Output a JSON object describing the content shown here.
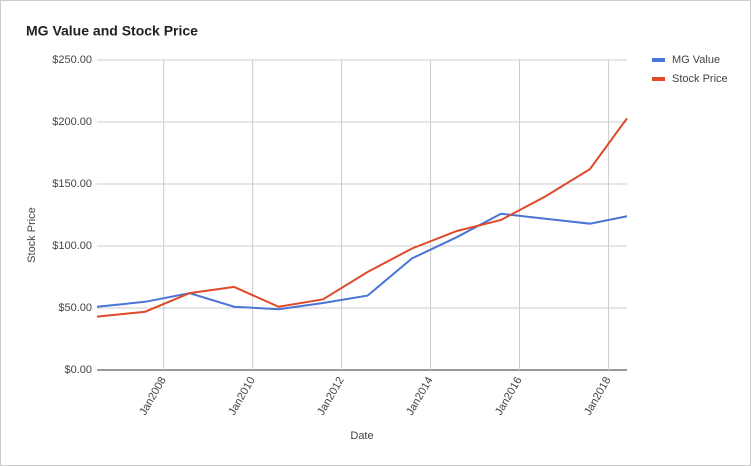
{
  "chart_data": {
    "type": "line",
    "title": "MG Value and Stock Price",
    "x_label": "Date",
    "y_label": "Stock Price",
    "x": [
      "2006-07",
      "2007-08",
      "2008-08",
      "2009-08",
      "2010-08",
      "2011-08",
      "2012-08",
      "2013-08",
      "2014-08",
      "2015-08",
      "2016-08",
      "2017-08",
      "2018-06"
    ],
    "series": [
      {
        "name": "MG Value",
        "color": "#4a74d6",
        "values": [
          51,
          55,
          62,
          51,
          49,
          54,
          60,
          90,
          107,
          126,
          122,
          118,
          124
        ]
      },
      {
        "name": "Stock Price",
        "color": "#e0492a",
        "values": [
          43,
          47,
          62,
          67,
          51,
          57,
          79,
          98,
          112,
          121,
          140,
          162,
          203
        ]
      }
    ],
    "xlim": [
      "2006-07",
      "2018-06"
    ],
    "xticks": [
      {
        "value": "2008-01",
        "label": "Jan2008"
      },
      {
        "value": "2010-01",
        "label": "Jan2010"
      },
      {
        "value": "2012-01",
        "label": "Jan2012"
      },
      {
        "value": "2014-01",
        "label": "Jan2014"
      },
      {
        "value": "2016-01",
        "label": "Jan2016"
      },
      {
        "value": "2018-01",
        "label": "Jan2018"
      }
    ],
    "ylim": [
      0,
      250
    ],
    "yticks": [
      {
        "value": 0,
        "label": "$0.00"
      },
      {
        "value": 50,
        "label": "$50.00"
      },
      {
        "value": 100,
        "label": "$100.00"
      },
      {
        "value": 150,
        "label": "$150.00"
      },
      {
        "value": 200,
        "label": "$200.00"
      },
      {
        "value": 250,
        "label": "$250.00"
      }
    ],
    "grid": true,
    "legend": "right"
  }
}
